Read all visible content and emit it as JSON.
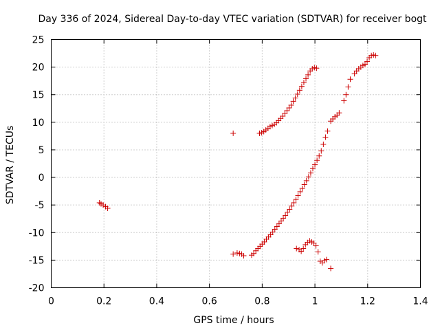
{
  "chart_data": {
    "type": "scatter",
    "title": "Day 336 of 2024, Sidereal Day-to-day VTEC variation (SDTVAR) for receiver bogt",
    "xlabel": "GPS time / hours",
    "ylabel": "SDTVAR / TECUs",
    "xlim": [
      0,
      1.4
    ],
    "ylim": [
      -20,
      25
    ],
    "x_ticks": [
      0,
      0.2,
      0.4,
      0.6,
      0.8,
      1,
      1.2,
      1.4
    ],
    "x_tick_labels": [
      "0",
      "0.2",
      "0.4",
      "0.6",
      "0.8",
      "1",
      "1.2",
      "1.4"
    ],
    "y_ticks": [
      -20,
      -15,
      -10,
      -5,
      0,
      5,
      10,
      15,
      20,
      25
    ],
    "y_tick_labels": [
      "-20",
      "-15",
      "-10",
      "-5",
      "0",
      "5",
      "10",
      "15",
      "20",
      "25"
    ],
    "grid": true,
    "marker": "plus",
    "marker_color": "#cc0000",
    "series": [
      {
        "values": [
          [
            0.183,
            -4.6
          ],
          [
            0.189,
            -4.8
          ],
          [
            0.197,
            -5.0
          ],
          [
            0.206,
            -5.3
          ],
          [
            0.214,
            -5.6
          ],
          [
            0.69,
            8.0
          ],
          [
            0.69,
            -13.9
          ],
          [
            0.705,
            -13.7
          ],
          [
            0.714,
            -13.8
          ],
          [
            0.722,
            -13.9
          ],
          [
            0.73,
            -14.2
          ],
          [
            0.76,
            -14.1
          ],
          [
            0.768,
            -13.8
          ],
          [
            0.776,
            -13.3
          ],
          [
            0.784,
            -12.9
          ],
          [
            0.792,
            -12.5
          ],
          [
            0.8,
            -12.1
          ],
          [
            0.808,
            -11.7
          ],
          [
            0.816,
            -11.2
          ],
          [
            0.824,
            -10.8
          ],
          [
            0.832,
            -10.4
          ],
          [
            0.84,
            -9.9
          ],
          [
            0.848,
            -9.4
          ],
          [
            0.856,
            -8.9
          ],
          [
            0.864,
            -8.4
          ],
          [
            0.872,
            -7.9
          ],
          [
            0.88,
            -7.4
          ],
          [
            0.888,
            -6.9
          ],
          [
            0.896,
            -6.3
          ],
          [
            0.904,
            -5.8
          ],
          [
            0.912,
            -5.2
          ],
          [
            0.92,
            -4.6
          ],
          [
            0.928,
            -4.0
          ],
          [
            0.936,
            -3.3
          ],
          [
            0.944,
            -2.6
          ],
          [
            0.952,
            -2.0
          ],
          [
            0.96,
            -1.3
          ],
          [
            0.968,
            -0.6
          ],
          [
            0.976,
            0.1
          ],
          [
            0.984,
            0.8
          ],
          [
            0.992,
            1.6
          ],
          [
            1.0,
            2.3
          ],
          [
            1.008,
            3.1
          ],
          [
            1.016,
            3.9
          ],
          [
            1.024,
            4.8
          ],
          [
            1.032,
            6.0
          ],
          [
            1.04,
            7.3
          ],
          [
            1.048,
            8.4
          ],
          [
            0.79,
            8.0
          ],
          [
            0.798,
            8.1
          ],
          [
            0.806,
            8.3
          ],
          [
            0.814,
            8.6
          ],
          [
            0.822,
            8.9
          ],
          [
            0.83,
            9.2
          ],
          [
            0.838,
            9.4
          ],
          [
            0.846,
            9.6
          ],
          [
            0.854,
            9.9
          ],
          [
            0.862,
            10.3
          ],
          [
            0.87,
            10.7
          ],
          [
            0.878,
            11.1
          ],
          [
            0.886,
            11.6
          ],
          [
            0.894,
            12.1
          ],
          [
            0.902,
            12.6
          ],
          [
            0.91,
            13.1
          ],
          [
            0.918,
            13.8
          ],
          [
            0.926,
            14.4
          ],
          [
            0.934,
            15.1
          ],
          [
            0.942,
            15.8
          ],
          [
            0.95,
            16.5
          ],
          [
            0.958,
            17.2
          ],
          [
            0.966,
            17.9
          ],
          [
            0.974,
            18.6
          ],
          [
            0.982,
            19.3
          ],
          [
            0.99,
            19.7
          ],
          [
            0.998,
            19.9
          ],
          [
            1.006,
            19.8
          ],
          [
            0.93,
            -12.9
          ],
          [
            0.94,
            -13.1
          ],
          [
            0.948,
            -13.4
          ],
          [
            0.956,
            -12.9
          ],
          [
            0.964,
            -12.2
          ],
          [
            0.972,
            -11.8
          ],
          [
            0.98,
            -11.5
          ],
          [
            0.988,
            -11.7
          ],
          [
            0.996,
            -11.9
          ],
          [
            1.004,
            -12.4
          ],
          [
            1.012,
            -13.5
          ],
          [
            1.02,
            -15.2
          ],
          [
            1.028,
            -15.5
          ],
          [
            1.036,
            -15.1
          ],
          [
            1.044,
            -14.9
          ],
          [
            1.06,
            -16.5
          ],
          [
            1.06,
            10.2
          ],
          [
            1.068,
            10.6
          ],
          [
            1.076,
            11.0
          ],
          [
            1.084,
            11.3
          ],
          [
            1.092,
            11.7
          ],
          [
            1.11,
            13.9
          ],
          [
            1.118,
            15.0
          ],
          [
            1.126,
            16.4
          ],
          [
            1.134,
            17.8
          ],
          [
            1.15,
            18.8
          ],
          [
            1.158,
            19.3
          ],
          [
            1.166,
            19.7
          ],
          [
            1.174,
            20.0
          ],
          [
            1.182,
            20.3
          ],
          [
            1.19,
            20.5
          ],
          [
            1.198,
            21.0
          ],
          [
            1.206,
            21.7
          ],
          [
            1.214,
            22.1
          ],
          [
            1.222,
            22.2
          ],
          [
            1.23,
            22.1
          ]
        ]
      }
    ]
  }
}
